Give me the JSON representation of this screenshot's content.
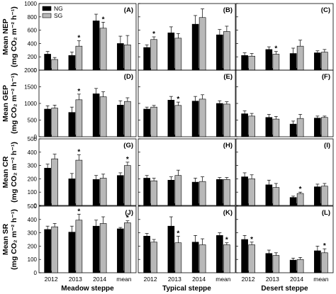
{
  "legend": [
    {
      "name": "NG",
      "color": "#000000"
    },
    {
      "name": "SG",
      "color": "#b8b8b8"
    }
  ],
  "x_categories": [
    "2012",
    "2013",
    "2014",
    "mean"
  ],
  "groups": [
    "Meadow steppe",
    "Typical steppe",
    "Desert steppe"
  ],
  "rows": [
    {
      "label_line1": "Mean NEP",
      "label_line2": "(mg CO₂ m⁻² h⁻¹)",
      "ylim": [
        0,
        1000
      ],
      "ticks": [
        "0",
        "200",
        "400",
        "600",
        "800",
        "1000"
      ]
    },
    {
      "label_line1": "Mean GEP",
      "label_line2": "(mg CO₂ m⁻² h⁻¹)",
      "ylim": [
        0,
        2000
      ],
      "ticks": [
        "0",
        "500",
        "1000",
        "1500",
        "2000"
      ]
    },
    {
      "label_line1": "Mean CR",
      "label_line2": "(mg CO₂ m⁻² h⁻¹)",
      "ylim": [
        0,
        500
      ],
      "ticks": [
        "0",
        "100",
        "200",
        "300",
        "400",
        "500"
      ]
    },
    {
      "label_line1": "Mean SR",
      "label_line2": "(mg CO₂ m⁻² h⁻¹)",
      "ylim": [
        0,
        500
      ],
      "ticks": [
        "0",
        "100",
        "200",
        "300",
        "400",
        "500"
      ]
    }
  ],
  "chart_data": [
    {
      "panel": "(A)",
      "type": "bar",
      "ylim": [
        0,
        1000
      ],
      "categories": [
        "2012",
        "2013",
        "2014",
        "mean"
      ],
      "series": [
        {
          "name": "NG",
          "values": [
            240,
            220,
            740,
            400
          ],
          "errors": [
            40,
            50,
            100,
            110
          ]
        },
        {
          "name": "SG",
          "values": [
            160,
            360,
            630,
            380
          ],
          "errors": [
            30,
            80,
            90,
            140
          ]
        }
      ],
      "significance": [
        0,
        1,
        1,
        0
      ]
    },
    {
      "panel": "(B)",
      "type": "bar",
      "ylim": [
        0,
        1000
      ],
      "categories": [
        "2012",
        "2013",
        "2014",
        "mean"
      ],
      "series": [
        {
          "name": "NG",
          "values": [
            340,
            560,
            690,
            530
          ],
          "errors": [
            40,
            90,
            130,
            80
          ]
        },
        {
          "name": "SG",
          "values": [
            460,
            480,
            790,
            580
          ],
          "errors": [
            40,
            70,
            130,
            80
          ]
        }
      ],
      "significance": [
        1,
        0,
        0,
        0
      ]
    },
    {
      "panel": "(C)",
      "type": "bar",
      "ylim": [
        0,
        1000
      ],
      "categories": [
        "2012",
        "2013",
        "2014",
        "mean"
      ],
      "series": [
        {
          "name": "NG",
          "values": [
            220,
            310,
            250,
            260
          ],
          "errors": [
            40,
            40,
            80,
            30
          ]
        },
        {
          "name": "SG",
          "values": [
            210,
            240,
            360,
            270
          ],
          "errors": [
            40,
            40,
            90,
            40
          ]
        }
      ],
      "significance": [
        0,
        1,
        0,
        0
      ]
    },
    {
      "panel": "(D)",
      "type": "bar",
      "ylim": [
        0,
        2000
      ],
      "categories": [
        "2012",
        "2013",
        "2014",
        "mean"
      ],
      "series": [
        {
          "name": "NG",
          "values": [
            830,
            730,
            1290,
            950
          ],
          "errors": [
            100,
            160,
            160,
            130
          ]
        },
        {
          "name": "SG",
          "values": [
            860,
            1110,
            1200,
            1060
          ],
          "errors": [
            90,
            170,
            150,
            110
          ]
        }
      ],
      "significance": [
        0,
        1,
        0,
        0
      ]
    },
    {
      "panel": "(E)",
      "type": "bar",
      "ylim": [
        0,
        2000
      ],
      "categories": [
        "2012",
        "2013",
        "2014",
        "mean"
      ],
      "series": [
        {
          "name": "NG",
          "values": [
            830,
            1100,
            1070,
            1000
          ],
          "errors": [
            60,
            110,
            140,
            80
          ]
        },
        {
          "name": "SG",
          "values": [
            890,
            940,
            1130,
            980
          ],
          "errors": [
            50,
            100,
            130,
            70
          ]
        }
      ],
      "significance": [
        0,
        1,
        0,
        0
      ]
    },
    {
      "panel": "(F)",
      "type": "bar",
      "ylim": [
        0,
        2000
      ],
      "categories": [
        "2012",
        "2013",
        "2014",
        "mean"
      ],
      "series": [
        {
          "name": "NG",
          "values": [
            690,
            580,
            380,
            560
          ],
          "errors": [
            90,
            90,
            90,
            60
          ]
        },
        {
          "name": "SG",
          "values": [
            620,
            530,
            550,
            580
          ],
          "errors": [
            80,
            80,
            120,
            40
          ]
        }
      ],
      "significance": [
        0,
        0,
        0,
        0
      ]
    },
    {
      "panel": "(G)",
      "type": "bar",
      "ylim": [
        0,
        500
      ],
      "categories": [
        "2012",
        "2013",
        "2014",
        "mean"
      ],
      "series": [
        {
          "name": "NG",
          "values": [
            280,
            200,
            195,
            225
          ],
          "errors": [
            30,
            40,
            30,
            20
          ]
        },
        {
          "name": "SG",
          "values": [
            350,
            340,
            205,
            300
          ],
          "errors": [
            35,
            40,
            30,
            25
          ]
        }
      ],
      "significance": [
        0,
        1,
        0,
        1
      ]
    },
    {
      "panel": "(H)",
      "type": "bar",
      "ylim": [
        0,
        500
      ],
      "categories": [
        "2012",
        "2013",
        "2014",
        "mean"
      ],
      "series": [
        {
          "name": "NG",
          "values": [
            205,
            190,
            175,
            195
          ],
          "errors": [
            20,
            25,
            30,
            15
          ]
        },
        {
          "name": "SG",
          "values": [
            185,
            225,
            180,
            195
          ],
          "errors": [
            20,
            40,
            35,
            15
          ]
        }
      ],
      "significance": [
        0,
        0,
        0,
        0
      ]
    },
    {
      "panel": "(I)",
      "type": "bar",
      "ylim": [
        0,
        500
      ],
      "categories": [
        "2012",
        "2013",
        "2014",
        "mean"
      ],
      "series": [
        {
          "name": "NG",
          "values": [
            215,
            155,
            60,
            140
          ],
          "errors": [
            30,
            35,
            10,
            20
          ]
        },
        {
          "name": "SG",
          "values": [
            200,
            135,
            90,
            145
          ],
          "errors": [
            30,
            30,
            10,
            20
          ]
        }
      ],
      "significance": [
        0,
        0,
        1,
        0
      ]
    },
    {
      "panel": "(J)",
      "type": "bar",
      "ylim": [
        0,
        500
      ],
      "categories": [
        "2012",
        "2013",
        "2014",
        "mean"
      ],
      "series": [
        {
          "name": "NG",
          "values": [
            325,
            305,
            350,
            330
          ],
          "errors": [
            25,
            45,
            45,
            10
          ]
        },
        {
          "name": "SG",
          "values": [
            345,
            395,
            370,
            375
          ],
          "errors": [
            25,
            45,
            50,
            15
          ]
        }
      ],
      "significance": [
        0,
        1,
        0,
        1
      ]
    },
    {
      "panel": "(K)",
      "type": "bar",
      "ylim": [
        0,
        500
      ],
      "categories": [
        "2012",
        "2013",
        "2014",
        "mean"
      ],
      "series": [
        {
          "name": "NG",
          "values": [
            275,
            350,
            230,
            280
          ],
          "errors": [
            20,
            70,
            50,
            20
          ]
        },
        {
          "name": "SG",
          "values": [
            230,
            225,
            210,
            210
          ],
          "errors": [
            20,
            50,
            45,
            15
          ]
        }
      ],
      "significance": [
        0,
        1,
        0,
        1
      ]
    },
    {
      "panel": "(L)",
      "type": "bar",
      "ylim": [
        0,
        500
      ],
      "categories": [
        "2012",
        "2013",
        "2014",
        "mean"
      ],
      "series": [
        {
          "name": "NG",
          "values": [
            250,
            145,
            95,
            165
          ],
          "errors": [
            30,
            25,
            15,
            35
          ]
        },
        {
          "name": "SG",
          "values": [
            210,
            130,
            100,
            150
          ],
          "errors": [
            20,
            20,
            15,
            30
          ]
        }
      ],
      "significance": [
        1,
        0,
        0,
        1
      ]
    }
  ]
}
